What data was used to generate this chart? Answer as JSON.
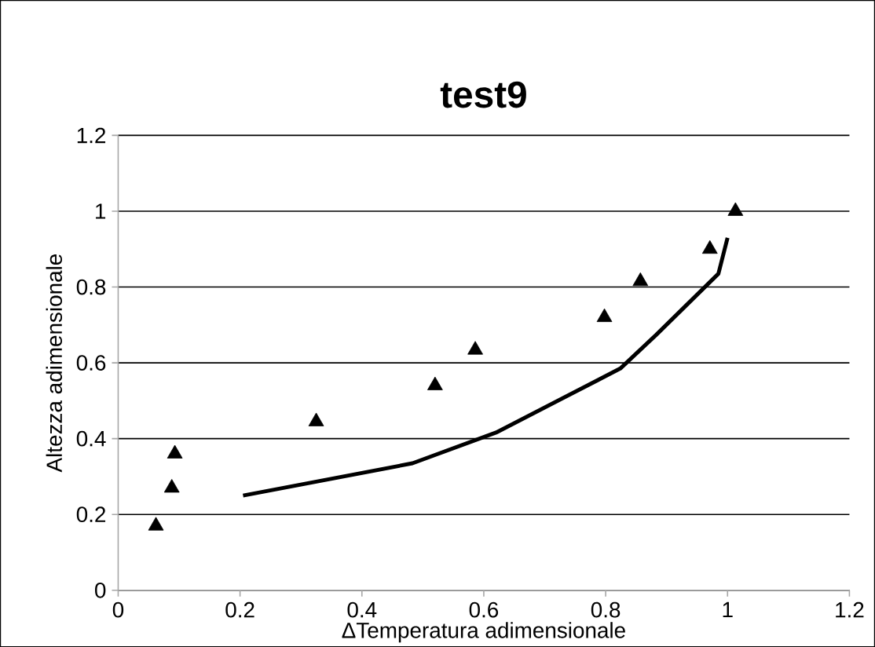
{
  "chart_data": {
    "type": "scatter",
    "title": "test9",
    "xlabel": "ΔTemperatura adimensionale",
    "ylabel": "Altezza adimensionale",
    "series": [
      {
        "type": "scatter",
        "color": "#000000",
        "marker": "triangle",
        "x": [
          0.062,
          0.088,
          0.093,
          0.325,
          0.52,
          0.586,
          0.798,
          0.857,
          0.971,
          1.013
        ],
        "values": [
          0.17,
          0.27,
          0.36,
          0.445,
          0.54,
          0.634,
          0.72,
          0.815,
          0.9,
          1.0
        ]
      },
      {
        "type": "line",
        "color": "#000000",
        "marker": "none",
        "x": [
          0.205,
          0.483,
          0.62,
          0.824,
          0.883,
          0.985,
          1.0
        ],
        "values": [
          0.25,
          0.335,
          0.416,
          0.585,
          0.674,
          0.835,
          0.93
        ]
      }
    ],
    "xlim": [
      0,
      1.2
    ],
    "ylim": [
      0,
      1.2
    ],
    "xticks": [
      0,
      0.2,
      0.4,
      0.6,
      0.8,
      1,
      1.2
    ],
    "yticks": [
      0,
      0.2,
      0.4,
      0.6,
      0.8,
      1,
      1.2
    ],
    "grid": "y"
  }
}
